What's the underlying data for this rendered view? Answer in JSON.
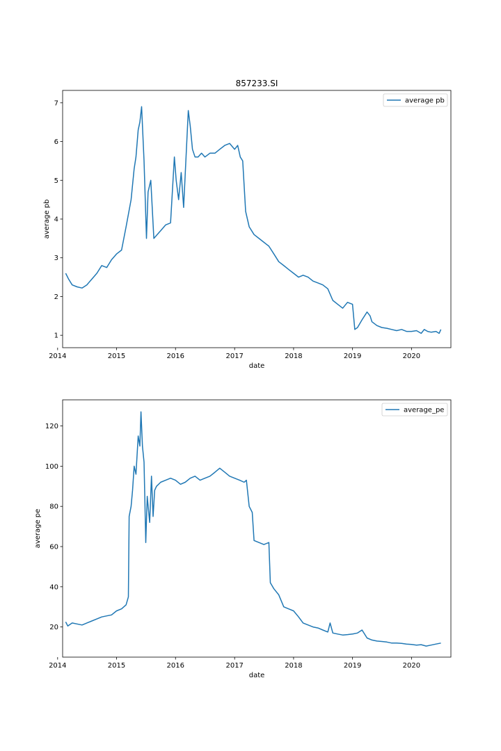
{
  "chart_data": [
    {
      "type": "line",
      "title": "857233.SI",
      "xlabel": "date",
      "ylabel": "average pb",
      "x_ticks": [
        "2014",
        "2015",
        "2016",
        "2017",
        "2018",
        "2019",
        "2020"
      ],
      "y_ticks": [
        "1",
        "2",
        "3",
        "4",
        "5",
        "6",
        "7"
      ],
      "xlim": [
        "2014-02-01",
        "2020-09-01"
      ],
      "ylim": [
        0.68,
        7.32
      ],
      "legend": "top-right",
      "grid": false,
      "color": "#1f77b4",
      "series": [
        {
          "name": "average pb",
          "x": [
            "2014-02-20",
            "2014-03-10",
            "2014-04-01",
            "2014-05-01",
            "2014-06-01",
            "2014-07-01",
            "2014-08-01",
            "2014-09-01",
            "2014-10-01",
            "2014-11-01",
            "2014-12-01",
            "2015-01-01",
            "2015-02-01",
            "2015-03-01",
            "2015-04-01",
            "2015-04-20",
            "2015-05-01",
            "2015-05-15",
            "2015-05-25",
            "2015-06-05",
            "2015-06-20",
            "2015-07-05",
            "2015-07-15",
            "2015-08-01",
            "2015-08-20",
            "2015-09-10",
            "2015-10-01",
            "2015-11-01",
            "2015-12-01",
            "2015-12-25",
            "2016-01-05",
            "2016-01-20",
            "2016-02-05",
            "2016-02-20",
            "2016-03-05",
            "2016-03-20",
            "2016-04-01",
            "2016-04-15",
            "2016-05-01",
            "2016-05-20",
            "2016-06-10",
            "2016-07-01",
            "2016-08-01",
            "2016-09-01",
            "2016-10-01",
            "2016-11-01",
            "2016-12-01",
            "2017-01-01",
            "2017-01-20",
            "2017-02-05",
            "2017-02-20",
            "2017-03-10",
            "2017-04-01",
            "2017-05-01",
            "2017-06-01",
            "2017-07-01",
            "2017-08-01",
            "2017-09-01",
            "2017-10-01",
            "2017-11-01",
            "2017-12-01",
            "2018-01-01",
            "2018-02-01",
            "2018-03-01",
            "2018-04-01",
            "2018-05-01",
            "2018-06-01",
            "2018-07-01",
            "2018-08-01",
            "2018-09-01",
            "2018-10-01",
            "2018-11-01",
            "2018-12-01",
            "2019-01-01",
            "2019-01-15",
            "2019-02-01",
            "2019-03-01",
            "2019-04-01",
            "2019-04-20",
            "2019-05-01",
            "2019-06-01",
            "2019-07-01",
            "2019-08-01",
            "2019-09-01",
            "2019-10-01",
            "2019-11-01",
            "2019-12-01",
            "2020-01-01",
            "2020-02-01",
            "2020-03-01",
            "2020-03-20",
            "2020-04-10",
            "2020-05-01",
            "2020-06-01",
            "2020-06-20",
            "2020-07-01"
          ],
          "values": [
            2.6,
            2.45,
            2.3,
            2.25,
            2.22,
            2.3,
            2.45,
            2.6,
            2.8,
            2.75,
            2.95,
            3.1,
            3.2,
            3.8,
            4.5,
            5.3,
            5.6,
            6.3,
            6.5,
            6.9,
            5.5,
            3.5,
            4.7,
            5.0,
            3.5,
            3.6,
            3.7,
            3.85,
            3.9,
            5.6,
            5.0,
            4.5,
            5.2,
            4.3,
            5.5,
            6.8,
            6.4,
            5.8,
            5.6,
            5.6,
            5.7,
            5.6,
            5.7,
            5.7,
            5.8,
            5.9,
            5.95,
            5.8,
            5.9,
            5.6,
            5.5,
            4.2,
            3.8,
            3.6,
            3.5,
            3.4,
            3.3,
            3.1,
            2.9,
            2.8,
            2.7,
            2.6,
            2.5,
            2.55,
            2.5,
            2.4,
            2.35,
            2.3,
            2.2,
            1.9,
            1.8,
            1.7,
            1.85,
            1.8,
            1.15,
            1.2,
            1.4,
            1.6,
            1.5,
            1.35,
            1.25,
            1.2,
            1.18,
            1.15,
            1.12,
            1.15,
            1.1,
            1.1,
            1.12,
            1.05,
            1.15,
            1.1,
            1.08,
            1.1,
            1.05,
            1.15
          ]
        }
      ]
    },
    {
      "type": "line",
      "title": "",
      "xlabel": "date",
      "ylabel": "average pe",
      "x_ticks": [
        "2014",
        "2015",
        "2016",
        "2017",
        "2018",
        "2019",
        "2020"
      ],
      "y_ticks": [
        "20",
        "40",
        "60",
        "80",
        "100",
        "120"
      ],
      "xlim": [
        "2014-02-01",
        "2020-09-01"
      ],
      "ylim": [
        5,
        133
      ],
      "legend": "top-right",
      "grid": false,
      "color": "#1f77b4",
      "series": [
        {
          "name": "average_pe",
          "x": [
            "2014-02-20",
            "2014-03-05",
            "2014-04-01",
            "2014-05-01",
            "2014-06-01",
            "2014-07-01",
            "2014-08-01",
            "2014-09-01",
            "2014-10-01",
            "2014-11-01",
            "2014-12-01",
            "2015-01-01",
            "2015-02-01",
            "2015-03-01",
            "2015-03-15",
            "2015-03-20",
            "2015-04-01",
            "2015-04-10",
            "2015-04-20",
            "2015-05-01",
            "2015-05-15",
            "2015-05-25",
            "2015-06-01",
            "2015-06-10",
            "2015-06-20",
            "2015-07-01",
            "2015-07-10",
            "2015-07-25",
            "2015-08-05",
            "2015-08-15",
            "2015-08-25",
            "2015-09-05",
            "2015-10-01",
            "2015-11-01",
            "2015-12-01",
            "2016-01-01",
            "2016-02-01",
            "2016-03-01",
            "2016-04-01",
            "2016-05-01",
            "2016-06-01",
            "2016-07-01",
            "2016-08-01",
            "2016-09-01",
            "2016-10-01",
            "2016-11-01",
            "2016-12-01",
            "2017-01-01",
            "2017-02-01",
            "2017-03-01",
            "2017-03-15",
            "2017-04-01",
            "2017-04-20",
            "2017-05-01",
            "2017-06-01",
            "2017-07-01",
            "2017-08-01",
            "2017-08-10",
            "2017-09-01",
            "2017-10-01",
            "2017-11-01",
            "2017-12-01",
            "2018-01-01",
            "2018-02-01",
            "2018-03-01",
            "2018-04-01",
            "2018-05-01",
            "2018-06-01",
            "2018-07-01",
            "2018-08-01",
            "2018-08-15",
            "2018-09-01",
            "2018-10-01",
            "2018-11-01",
            "2018-12-01",
            "2019-01-01",
            "2019-02-01",
            "2019-03-01",
            "2019-04-01",
            "2019-05-01",
            "2019-06-01",
            "2019-07-01",
            "2019-08-01",
            "2019-09-01",
            "2019-10-01",
            "2019-11-01",
            "2019-12-01",
            "2020-01-01",
            "2020-02-01",
            "2020-03-01",
            "2020-04-01",
            "2020-05-01",
            "2020-06-01",
            "2020-07-01"
          ],
          "values": [
            22.5,
            20.5,
            22,
            21.5,
            21,
            22,
            23,
            24,
            25,
            25.5,
            26,
            28,
            29,
            31,
            35,
            75,
            80,
            88,
            100,
            96,
            115,
            110,
            127,
            110,
            102,
            62,
            85,
            72,
            95,
            75,
            88,
            90,
            92,
            93,
            94,
            93,
            91,
            92,
            94,
            95,
            93,
            94,
            95,
            97,
            99,
            97,
            95,
            94,
            93,
            92,
            93,
            80,
            77,
            63,
            62,
            61,
            62,
            42,
            39,
            36,
            30,
            29,
            28,
            25,
            22,
            21,
            20,
            19.5,
            18.5,
            17.5,
            22,
            17,
            16.5,
            16,
            16.2,
            16.5,
            17,
            18.5,
            14.5,
            13.5,
            13,
            12.8,
            12.5,
            12,
            12,
            11.8,
            11.5,
            11.3,
            11,
            11.2,
            10.5,
            11,
            11.5,
            12
          ]
        }
      ]
    }
  ]
}
